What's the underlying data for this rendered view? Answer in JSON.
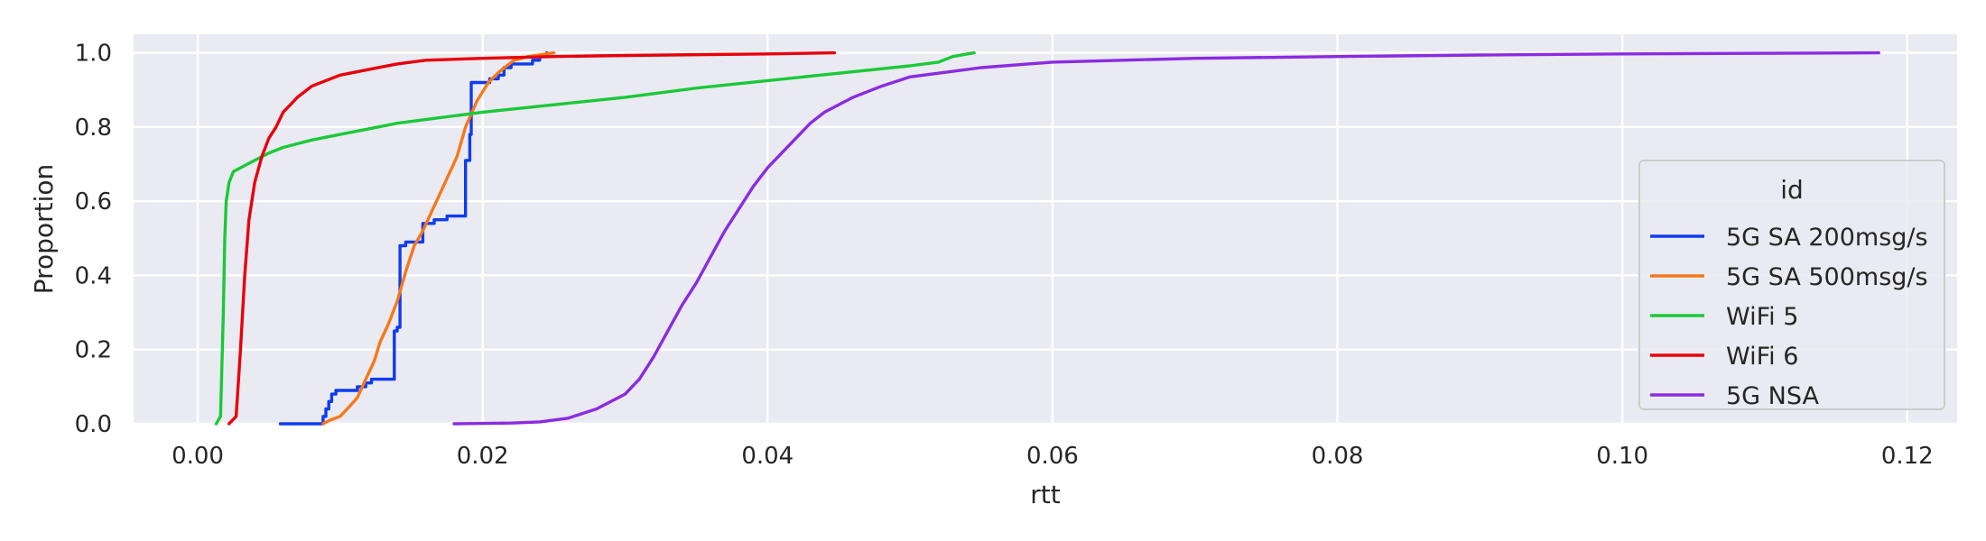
{
  "chart_data": {
    "type": "line",
    "subtype": "ecdf",
    "xlabel": "rtt",
    "ylabel": "Proportion",
    "xlim": [
      -0.0045,
      0.1235
    ],
    "ylim": [
      0.0,
      1.05
    ],
    "xticks": [
      0.0,
      0.02,
      0.04,
      0.06,
      0.08,
      0.1,
      0.12
    ],
    "xtick_labels": [
      "0.00",
      "0.02",
      "0.04",
      "0.06",
      "0.08",
      "0.10",
      "0.12"
    ],
    "yticks": [
      0.0,
      0.2,
      0.4,
      0.6,
      0.8,
      1.0
    ],
    "ytick_labels": [
      "0.0",
      "0.2",
      "0.4",
      "0.6",
      "0.8",
      "1.0"
    ],
    "grid": true,
    "background": "#eaeaf2",
    "legend": {
      "title": "id",
      "placement": "lower-right"
    },
    "series": [
      {
        "name": "5G SA 200msg/s",
        "color": "#0d3cf0",
        "step": true,
        "points": [
          [
            0.0058,
            0.0
          ],
          [
            0.0087,
            0.0
          ],
          [
            0.0088,
            0.02
          ],
          [
            0.009,
            0.04
          ],
          [
            0.0092,
            0.06
          ],
          [
            0.0094,
            0.08
          ],
          [
            0.0097,
            0.09
          ],
          [
            0.011,
            0.09
          ],
          [
            0.0112,
            0.1
          ],
          [
            0.0118,
            0.11
          ],
          [
            0.0122,
            0.12
          ],
          [
            0.0136,
            0.12
          ],
          [
            0.0138,
            0.25
          ],
          [
            0.014,
            0.26
          ],
          [
            0.0142,
            0.48
          ],
          [
            0.0146,
            0.49
          ],
          [
            0.0156,
            0.49
          ],
          [
            0.0158,
            0.54
          ],
          [
            0.0166,
            0.55
          ],
          [
            0.0175,
            0.56
          ],
          [
            0.0187,
            0.56
          ],
          [
            0.0188,
            0.71
          ],
          [
            0.019,
            0.71
          ],
          [
            0.0191,
            0.78
          ],
          [
            0.0192,
            0.92
          ],
          [
            0.0205,
            0.93
          ],
          [
            0.021,
            0.93
          ],
          [
            0.0211,
            0.94
          ],
          [
            0.0215,
            0.96
          ],
          [
            0.022,
            0.97
          ],
          [
            0.0226,
            0.97
          ],
          [
            0.0235,
            0.98
          ],
          [
            0.024,
            0.99
          ],
          [
            0.0245,
            1.0
          ]
        ]
      },
      {
        "name": "5G SA 500msg/s",
        "color": "#f5781a",
        "step": false,
        "points": [
          [
            0.0088,
            0.0
          ],
          [
            0.0093,
            0.01
          ],
          [
            0.01,
            0.02
          ],
          [
            0.0105,
            0.04
          ],
          [
            0.0112,
            0.07
          ],
          [
            0.0118,
            0.12
          ],
          [
            0.0124,
            0.17
          ],
          [
            0.0128,
            0.22
          ],
          [
            0.0134,
            0.27
          ],
          [
            0.014,
            0.33
          ],
          [
            0.0146,
            0.41
          ],
          [
            0.0152,
            0.48
          ],
          [
            0.0158,
            0.52
          ],
          [
            0.0164,
            0.57
          ],
          [
            0.017,
            0.62
          ],
          [
            0.0176,
            0.67
          ],
          [
            0.0182,
            0.72
          ],
          [
            0.0188,
            0.8
          ],
          [
            0.0196,
            0.87
          ],
          [
            0.0204,
            0.92
          ],
          [
            0.0212,
            0.95
          ],
          [
            0.0222,
            0.98
          ],
          [
            0.0232,
            0.99
          ],
          [
            0.025,
            1.0
          ]
        ]
      },
      {
        "name": "WiFi 5",
        "color": "#1ac938",
        "step": false,
        "points": [
          [
            0.0013,
            0.0
          ],
          [
            0.0016,
            0.02
          ],
          [
            0.0018,
            0.3
          ],
          [
            0.0019,
            0.5
          ],
          [
            0.002,
            0.6
          ],
          [
            0.0022,
            0.65
          ],
          [
            0.0025,
            0.68
          ],
          [
            0.003,
            0.69
          ],
          [
            0.004,
            0.71
          ],
          [
            0.005,
            0.73
          ],
          [
            0.006,
            0.745
          ],
          [
            0.007,
            0.755
          ],
          [
            0.008,
            0.765
          ],
          [
            0.01,
            0.78
          ],
          [
            0.012,
            0.795
          ],
          [
            0.014,
            0.81
          ],
          [
            0.016,
            0.82
          ],
          [
            0.018,
            0.83
          ],
          [
            0.02,
            0.84
          ],
          [
            0.025,
            0.86
          ],
          [
            0.03,
            0.88
          ],
          [
            0.035,
            0.905
          ],
          [
            0.04,
            0.925
          ],
          [
            0.045,
            0.945
          ],
          [
            0.05,
            0.965
          ],
          [
            0.052,
            0.975
          ],
          [
            0.053,
            0.99
          ],
          [
            0.0545,
            1.0
          ]
        ]
      },
      {
        "name": "WiFi 6",
        "color": "#e8000b",
        "step": false,
        "points": [
          [
            0.0022,
            0.0
          ],
          [
            0.0027,
            0.02
          ],
          [
            0.003,
            0.2
          ],
          [
            0.0033,
            0.4
          ],
          [
            0.0036,
            0.55
          ],
          [
            0.004,
            0.65
          ],
          [
            0.0045,
            0.72
          ],
          [
            0.005,
            0.77
          ],
          [
            0.0055,
            0.8
          ],
          [
            0.006,
            0.84
          ],
          [
            0.007,
            0.88
          ],
          [
            0.008,
            0.91
          ],
          [
            0.009,
            0.925
          ],
          [
            0.01,
            0.94
          ],
          [
            0.012,
            0.955
          ],
          [
            0.014,
            0.97
          ],
          [
            0.016,
            0.98
          ],
          [
            0.02,
            0.985
          ],
          [
            0.025,
            0.99
          ],
          [
            0.03,
            0.993
          ],
          [
            0.04,
            0.997
          ],
          [
            0.0447,
            1.0
          ]
        ]
      },
      {
        "name": "5G NSA",
        "color": "#8b2be2",
        "step": false,
        "points": [
          [
            0.018,
            0.0
          ],
          [
            0.022,
            0.002
          ],
          [
            0.024,
            0.005
          ],
          [
            0.026,
            0.015
          ],
          [
            0.028,
            0.04
          ],
          [
            0.03,
            0.08
          ],
          [
            0.031,
            0.12
          ],
          [
            0.032,
            0.18
          ],
          [
            0.033,
            0.25
          ],
          [
            0.034,
            0.32
          ],
          [
            0.035,
            0.38
          ],
          [
            0.036,
            0.45
          ],
          [
            0.037,
            0.52
          ],
          [
            0.038,
            0.58
          ],
          [
            0.039,
            0.64
          ],
          [
            0.04,
            0.69
          ],
          [
            0.041,
            0.73
          ],
          [
            0.042,
            0.77
          ],
          [
            0.043,
            0.81
          ],
          [
            0.044,
            0.84
          ],
          [
            0.046,
            0.88
          ],
          [
            0.048,
            0.91
          ],
          [
            0.05,
            0.935
          ],
          [
            0.055,
            0.96
          ],
          [
            0.06,
            0.975
          ],
          [
            0.07,
            0.985
          ],
          [
            0.08,
            0.99
          ],
          [
            0.09,
            0.994
          ],
          [
            0.1,
            0.997
          ],
          [
            0.118,
            1.0
          ]
        ]
      }
    ]
  }
}
